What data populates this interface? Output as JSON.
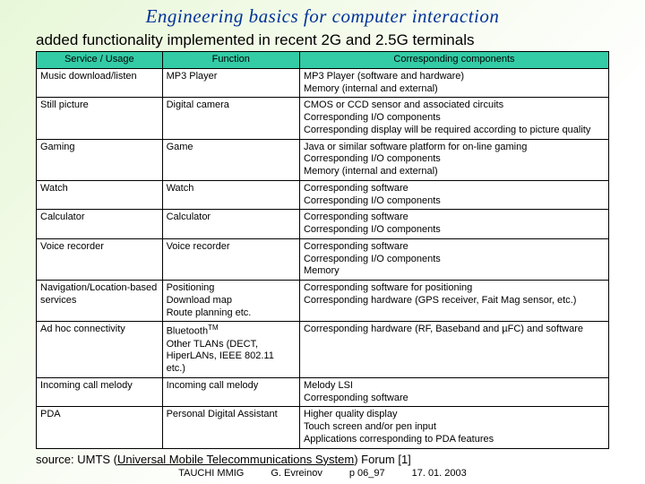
{
  "title": "Engineering basics for computer interaction",
  "subtitle": "added functionality implemented in recent 2G and 2.5G terminals",
  "colors": {
    "header_bg": "#33cca6",
    "border": "#000000",
    "title_color": "#003399",
    "background_gradient": [
      "#e8f7d8",
      "#ffffff"
    ]
  },
  "table": {
    "columns": [
      "Service / Usage",
      "Function",
      "Corresponding components"
    ],
    "rows": [
      [
        "Music download/listen",
        "MP3 Player",
        "MP3 Player (software and hardware)\nMemory (internal and external)"
      ],
      [
        "Still picture",
        "Digital camera",
        "CMOS or CCD sensor and associated circuits\nCorresponding I/O components\nCorresponding display will be required according to picture quality"
      ],
      [
        "Gaming",
        "Game",
        "Java or similar software platform for on-line gaming\nCorresponding I/O components\nMemory (internal and external)"
      ],
      [
        "Watch",
        "Watch",
        "Corresponding software\nCorresponding I/O components"
      ],
      [
        "Calculator",
        "Calculator",
        "Corresponding software\nCorresponding I/O components"
      ],
      [
        "Voice recorder",
        "Voice recorder",
        "Corresponding software\nCorresponding I/O components\nMemory"
      ],
      [
        "Navigation/Location-based services",
        "Positioning\nDownload map\nRoute planning etc.",
        "Corresponding software for positioning\nCorresponding hardware (GPS receiver, Fait Mag sensor, etc.)"
      ],
      [
        "Ad hoc connectivity",
        "Bluetooth™\nOther TLANs (DECT, HiperLANs, IEEE 802.11 etc.)",
        "Corresponding hardware (RF, Baseband and µFC) and software"
      ],
      [
        "Incoming call melody",
        "Incoming call melody",
        "Melody LSI\nCorresponding software"
      ],
      [
        "PDA",
        "Personal Digital Assistant",
        "Higher quality display\nTouch screen and/or pen input\nApplications corresponding to PDA features"
      ]
    ]
  },
  "source": {
    "prefix": "source: UMTS (",
    "abbr": "Universal Mobile Telecommunications System",
    "suffix": ") Forum [1]"
  },
  "footer": {
    "org": "TAUCHI MMIG",
    "author": "G. Evreinov",
    "page": "p 06_97",
    "date": "17. 01. 2003"
  }
}
